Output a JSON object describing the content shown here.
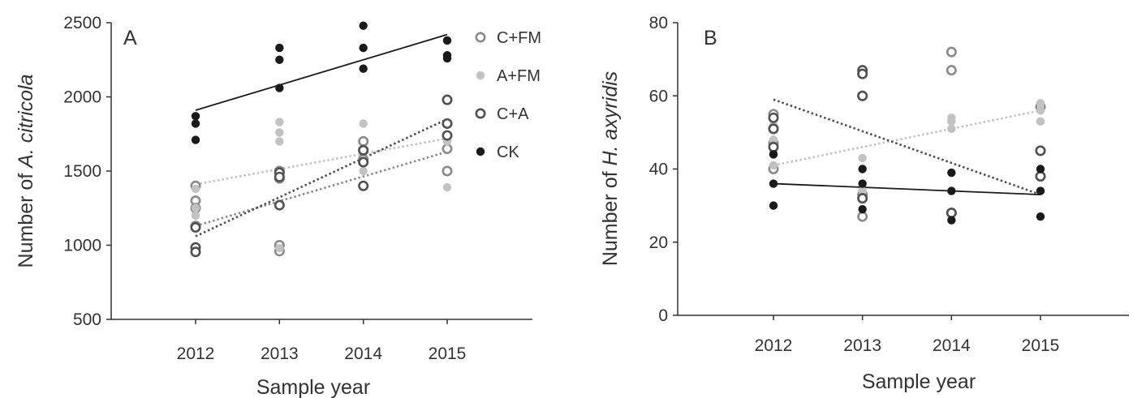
{
  "colors": {
    "C+FM": "#8a8a8a",
    "A+FM": "#c2c2c2",
    "C+A": "#505050",
    "CK": "#1a1a1a"
  },
  "legend": [
    {
      "label": "C+FM",
      "symbol": "open-circle",
      "color": "#8a8a8a"
    },
    {
      "label": "A+FM",
      "symbol": "filled-circle",
      "color": "#c2c2c2"
    },
    {
      "label": "C+A",
      "symbol": "open-circle",
      "color": "#505050"
    },
    {
      "label": "CK",
      "symbol": "filled-circle",
      "color": "#1a1a1a"
    }
  ],
  "chart_data": [
    {
      "type": "scatter",
      "panel_label": "A",
      "xlabel": "Sample year",
      "ylabel_prefix": "Number of ",
      "ylabel_italic": "A. citricola",
      "categories": [
        "2012",
        "2013",
        "2014",
        "2015"
      ],
      "ylim": [
        500,
        2500
      ],
      "yticks": [
        "500",
        "1000",
        "1500",
        "2000",
        "2500"
      ],
      "legend_position": "top-right",
      "series": [
        {
          "name": "C+FM",
          "marker": "open",
          "line": "dotted",
          "points": [
            [
              2012,
              1400
            ],
            [
              2012,
              1300
            ],
            [
              2012,
              1250
            ],
            [
              2012,
              1130
            ],
            [
              2013,
              1500
            ],
            [
              2013,
              1450
            ],
            [
              2013,
              1000
            ],
            [
              2013,
              960
            ],
            [
              2014,
              1700
            ],
            [
              2014,
              1640
            ],
            [
              2014,
              1580
            ],
            [
              2015,
              1820
            ],
            [
              2015,
              1650
            ],
            [
              2015,
              1500
            ]
          ],
          "trend": [
            [
              2012,
              1130
            ],
            [
              2015,
              1630
            ]
          ]
        },
        {
          "name": "A+FM",
          "marker": "filled",
          "line": "dotted",
          "points": [
            [
              2012,
              1380
            ],
            [
              2012,
              1250
            ],
            [
              2012,
              1200
            ],
            [
              2013,
              1830
            ],
            [
              2013,
              1760
            ],
            [
              2013,
              1700
            ],
            [
              2013,
              980
            ],
            [
              2014,
              1820
            ],
            [
              2014,
              1500
            ],
            [
              2015,
              1700
            ],
            [
              2015,
              1390
            ]
          ],
          "trend": [
            [
              2012,
              1410
            ],
            [
              2015,
              1720
            ]
          ]
        },
        {
          "name": "C+A",
          "marker": "open",
          "line": "dotted",
          "points": [
            [
              2012,
              1120
            ],
            [
              2012,
              985
            ],
            [
              2012,
              955
            ],
            [
              2013,
              1490
            ],
            [
              2013,
              1460
            ],
            [
              2013,
              1270
            ],
            [
              2014,
              1640
            ],
            [
              2014,
              1560
            ],
            [
              2014,
              1400
            ],
            [
              2015,
              1980
            ],
            [
              2015,
              1820
            ],
            [
              2015,
              1740
            ]
          ],
          "trend": [
            [
              2012,
              1060
            ],
            [
              2015,
              1850
            ]
          ]
        },
        {
          "name": "CK",
          "marker": "filled",
          "line": "solid",
          "points": [
            [
              2012,
              1870
            ],
            [
              2012,
              1820
            ],
            [
              2012,
              1710
            ],
            [
              2013,
              2330
            ],
            [
              2013,
              2250
            ],
            [
              2013,
              2060
            ],
            [
              2014,
              2480
            ],
            [
              2014,
              2330
            ],
            [
              2014,
              2190
            ],
            [
              2015,
              2380
            ],
            [
              2015,
              2280
            ],
            [
              2015,
              2260
            ]
          ],
          "trend": [
            [
              2012,
              1910
            ],
            [
              2015,
              2420
            ]
          ]
        }
      ]
    },
    {
      "type": "scatter",
      "panel_label": "B",
      "xlabel": "Sample year",
      "ylabel_prefix": "Number of ",
      "ylabel_italic": "H. axyridis",
      "categories": [
        "2012",
        "2013",
        "2014",
        "2015"
      ],
      "ylim": [
        0,
        80
      ],
      "yticks": [
        "0",
        "20",
        "40",
        "60",
        "80"
      ],
      "series": [
        {
          "name": "C+FM",
          "marker": "open",
          "line": "dotted",
          "points": [
            [
              2012,
              55
            ],
            [
              2012,
              51
            ],
            [
              2012,
              47
            ],
            [
              2012,
              40
            ],
            [
              2013,
              66
            ],
            [
              2013,
              60
            ],
            [
              2013,
              33
            ],
            [
              2013,
              27
            ],
            [
              2014,
              72
            ],
            [
              2014,
              67
            ],
            [
              2014,
              28
            ],
            [
              2015,
              57
            ],
            [
              2015,
              45
            ],
            [
              2015,
              38
            ]
          ]
        },
        {
          "name": "A+FM",
          "marker": "filled",
          "line": "dotted",
          "points": [
            [
              2012,
              52
            ],
            [
              2012,
              48
            ],
            [
              2012,
              45
            ],
            [
              2012,
              41
            ],
            [
              2013,
              43
            ],
            [
              2013,
              36
            ],
            [
              2013,
              34
            ],
            [
              2014,
              54
            ],
            [
              2014,
              53
            ],
            [
              2014,
              51
            ],
            [
              2015,
              58
            ],
            [
              2015,
              56
            ],
            [
              2015,
              53
            ]
          ],
          "trend": [
            [
              2012,
              41
            ],
            [
              2015,
              56
            ]
          ]
        },
        {
          "name": "C+A",
          "marker": "open",
          "line": "dotted",
          "points": [
            [
              2012,
              54
            ],
            [
              2012,
              51
            ],
            [
              2012,
              46
            ],
            [
              2013,
              67
            ],
            [
              2013,
              66
            ],
            [
              2013,
              60
            ],
            [
              2013,
              32
            ],
            [
              2014,
              28
            ],
            [
              2015,
              45
            ],
            [
              2015,
              38
            ]
          ],
          "trend": [
            [
              2012,
              59
            ],
            [
              2015,
              33
            ]
          ]
        },
        {
          "name": "CK",
          "marker": "filled",
          "line": "solid",
          "points": [
            [
              2012,
              44
            ],
            [
              2012,
              36
            ],
            [
              2012,
              30
            ],
            [
              2013,
              40
            ],
            [
              2013,
              36
            ],
            [
              2013,
              29
            ],
            [
              2014,
              39
            ],
            [
              2014,
              34
            ],
            [
              2014,
              26
            ],
            [
              2015,
              40
            ],
            [
              2015,
              34
            ],
            [
              2015,
              27
            ]
          ],
          "trend": [
            [
              2012,
              36
            ],
            [
              2015,
              33
            ]
          ]
        }
      ]
    }
  ]
}
